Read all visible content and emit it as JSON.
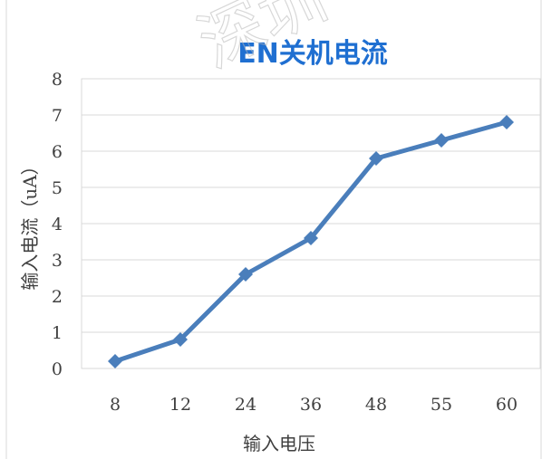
{
  "chart_data": {
    "type": "line",
    "title": "EN关机电流",
    "xlabel": "输入电压",
    "ylabel": "输入电流（uA）",
    "categories": [
      "8",
      "12",
      "24",
      "36",
      "48",
      "55",
      "60"
    ],
    "series": [
      {
        "values": [
          0.2,
          0.8,
          2.6,
          3.6,
          5.8,
          6.3,
          6.8
        ]
      }
    ],
    "ylim": [
      0,
      8
    ],
    "yticks": [
      0,
      1,
      2,
      3,
      4,
      5,
      6,
      7,
      8
    ],
    "grid": true,
    "legend": "none",
    "line_color": "#4a7ebb"
  },
  "watermark": "深圳"
}
